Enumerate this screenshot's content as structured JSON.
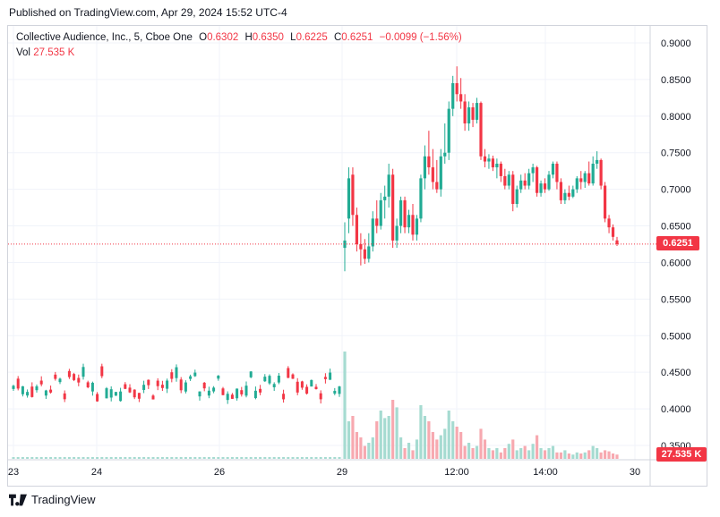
{
  "header": {
    "published": "Published on TradingView.com, Apr 29, 2024 15:52 UTC-4"
  },
  "legend": {
    "title": "Collective Audience, Inc., 5, Cboe One",
    "open_label": "O",
    "open": "0.6302",
    "high_label": "H",
    "high": "0.6350",
    "low_label": "L",
    "low": "0.6225",
    "close_label": "C",
    "close": "0.6251",
    "change": "−0.0099 (−1.56%)",
    "vol_label": "Vol",
    "vol_value": "27.535 K"
  },
  "price_tag": "0.6251",
  "vol_tag": "27.535 K",
  "footer": {
    "brand": "TradingView"
  },
  "colors": {
    "up": "#22ab94",
    "down": "#f23645",
    "grid": "#f0f3fa",
    "axis_text": "#131722"
  },
  "chart_data": {
    "type": "candlestick",
    "title": "Collective Audience, Inc., 5, Cboe One",
    "y_axis": {
      "ticks": [
        "0.9000",
        "0.8500",
        "0.8000",
        "0.7500",
        "0.7000",
        "0.6500",
        "0.6000",
        "0.5500",
        "0.5000",
        "0.4500",
        "0.4000",
        "0.3500"
      ],
      "values": [
        0.9,
        0.85,
        0.8,
        0.75,
        0.7,
        0.65,
        0.6,
        0.55,
        0.5,
        0.45,
        0.4,
        0.35
      ],
      "range": [
        0.325,
        0.92
      ]
    },
    "x_axis": {
      "ticks": [
        "23",
        "24",
        "26",
        "29",
        "12:00",
        "14:00",
        "30"
      ]
    },
    "last_price": 0.6251,
    "ohlc_apr29": [
      [
        0.62,
        0.655,
        0.588,
        0.63
      ],
      [
        0.66,
        0.73,
        0.64,
        0.715
      ],
      [
        0.72,
        0.73,
        0.65,
        0.665
      ],
      [
        0.665,
        0.675,
        0.615,
        0.625
      ],
      [
        0.625,
        0.64,
        0.596,
        0.618
      ],
      [
        0.618,
        0.632,
        0.598,
        0.605
      ],
      [
        0.605,
        0.64,
        0.6,
        0.622
      ],
      [
        0.622,
        0.67,
        0.615,
        0.66
      ],
      [
        0.66,
        0.685,
        0.64,
        0.65
      ],
      [
        0.65,
        0.695,
        0.645,
        0.685
      ],
      [
        0.685,
        0.705,
        0.66,
        0.69
      ],
      [
        0.69,
        0.735,
        0.675,
        0.72
      ],
      [
        0.72,
        0.728,
        0.62,
        0.63
      ],
      [
        0.63,
        0.66,
        0.62,
        0.65
      ],
      [
        0.65,
        0.69,
        0.64,
        0.685
      ],
      [
        0.685,
        0.69,
        0.64,
        0.648
      ],
      [
        0.648,
        0.672,
        0.64,
        0.665
      ],
      [
        0.665,
        0.68,
        0.63,
        0.638
      ],
      [
        0.638,
        0.665,
        0.63,
        0.66
      ],
      [
        0.66,
        0.72,
        0.655,
        0.715
      ],
      [
        0.715,
        0.76,
        0.7,
        0.745
      ],
      [
        0.745,
        0.78,
        0.72,
        0.73
      ],
      [
        0.73,
        0.755,
        0.7,
        0.71
      ],
      [
        0.71,
        0.74,
        0.695,
        0.7
      ],
      [
        0.7,
        0.755,
        0.69,
        0.745
      ],
      [
        0.745,
        0.79,
        0.735,
        0.75
      ],
      [
        0.75,
        0.82,
        0.74,
        0.81
      ],
      [
        0.81,
        0.855,
        0.8,
        0.845
      ],
      [
        0.845,
        0.868,
        0.82,
        0.83
      ],
      [
        0.83,
        0.852,
        0.81,
        0.82
      ],
      [
        0.82,
        0.83,
        0.78,
        0.79
      ],
      [
        0.79,
        0.82,
        0.78,
        0.812
      ],
      [
        0.812,
        0.818,
        0.785,
        0.795
      ],
      [
        0.795,
        0.825,
        0.79,
        0.818
      ],
      [
        0.818,
        0.82,
        0.74,
        0.745
      ],
      [
        0.745,
        0.755,
        0.73,
        0.738
      ],
      [
        0.738,
        0.748,
        0.728,
        0.742
      ],
      [
        0.742,
        0.746,
        0.725,
        0.73
      ],
      [
        0.73,
        0.742,
        0.715,
        0.735
      ],
      [
        0.735,
        0.738,
        0.71,
        0.718
      ],
      [
        0.718,
        0.728,
        0.7,
        0.705
      ],
      [
        0.705,
        0.725,
        0.7,
        0.72
      ],
      [
        0.72,
        0.725,
        0.67,
        0.68
      ],
      [
        0.68,
        0.705,
        0.675,
        0.7
      ],
      [
        0.7,
        0.72,
        0.695,
        0.712
      ],
      [
        0.712,
        0.722,
        0.7,
        0.705
      ],
      [
        0.705,
        0.728,
        0.7,
        0.722
      ],
      [
        0.722,
        0.735,
        0.71,
        0.73
      ],
      [
        0.73,
        0.732,
        0.69,
        0.695
      ],
      [
        0.695,
        0.712,
        0.69,
        0.708
      ],
      [
        0.708,
        0.715,
        0.695,
        0.7
      ],
      [
        0.7,
        0.725,
        0.698,
        0.72
      ],
      [
        0.72,
        0.738,
        0.715,
        0.735
      ],
      [
        0.735,
        0.738,
        0.7,
        0.71
      ],
      [
        0.71,
        0.715,
        0.68,
        0.685
      ],
      [
        0.685,
        0.7,
        0.68,
        0.695
      ],
      [
        0.695,
        0.705,
        0.685,
        0.69
      ],
      [
        0.69,
        0.705,
        0.688,
        0.7
      ],
      [
        0.7,
        0.718,
        0.695,
        0.715
      ],
      [
        0.715,
        0.725,
        0.7,
        0.71
      ],
      [
        0.71,
        0.725,
        0.702,
        0.722
      ],
      [
        0.722,
        0.738,
        0.705,
        0.708
      ],
      [
        0.708,
        0.745,
        0.705,
        0.735
      ],
      [
        0.735,
        0.752,
        0.728,
        0.74
      ],
      [
        0.74,
        0.742,
        0.7,
        0.705
      ],
      [
        0.705,
        0.71,
        0.655,
        0.66
      ],
      [
        0.66,
        0.665,
        0.64,
        0.648
      ],
      [
        0.648,
        0.652,
        0.63,
        0.635
      ],
      [
        0.6302,
        0.635,
        0.6225,
        0.6251
      ]
    ],
    "volume_apr29_relative": [
      1.0,
      0.35,
      0.4,
      0.25,
      0.2,
      0.12,
      0.15,
      0.2,
      0.35,
      0.45,
      0.38,
      0.4,
      0.55,
      0.48,
      0.2,
      0.1,
      0.15,
      0.08,
      0.18,
      0.5,
      0.4,
      0.35,
      0.25,
      0.18,
      0.22,
      0.28,
      0.45,
      0.35,
      0.3,
      0.25,
      0.12,
      0.15,
      0.1,
      0.12,
      0.28,
      0.18,
      0.1,
      0.08,
      0.1,
      0.06,
      0.1,
      0.14,
      0.18,
      0.08,
      0.1,
      0.12,
      0.08,
      0.14,
      0.22,
      0.1,
      0.08,
      0.1,
      0.12,
      0.06,
      0.06,
      0.08,
      0.05,
      0.04,
      0.06,
      0.05,
      0.06,
      0.08,
      0.12,
      0.1,
      0.06,
      0.08,
      0.07,
      0.05,
      0.04
    ]
  }
}
